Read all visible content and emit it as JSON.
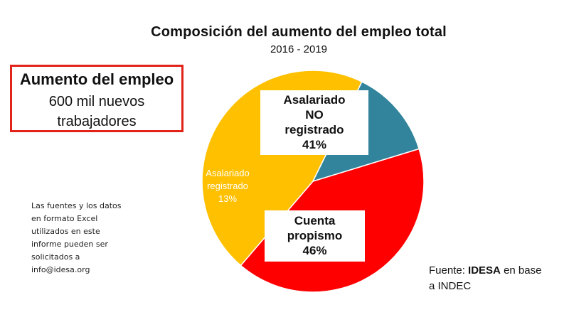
{
  "chart_data": {
    "type": "pie",
    "title": "Composición del aumento del empleo total",
    "subtitle": "2016 - 2019",
    "slices": [
      {
        "label_lines": [
          "Asalariado",
          "NO",
          "registrado"
        ],
        "value": 41,
        "value_label": "41%",
        "color": "#ff0000"
      },
      {
        "label_lines": [
          "Cuenta",
          "propismo"
        ],
        "value": 46,
        "value_label": "46%",
        "color": "#ffc000"
      },
      {
        "label_lines": [
          "Asalariado",
          "registrado"
        ],
        "value": 13,
        "value_label": "13%",
        "color": "#31849b"
      }
    ],
    "start_angle_deg": 73,
    "direction": "clockwise"
  },
  "callout": {
    "title": "Aumento del empleo",
    "body": "600 mil nuevos trabajadores",
    "border_color": "#e2231a"
  },
  "note": "Las fuentes y los datos en formato Excel utilizados en este informe pueden ser solicitados a info@idesa.org",
  "source": {
    "prefix": "Fuente:",
    "org": "IDESA",
    "suffix": "en base a INDEC"
  }
}
